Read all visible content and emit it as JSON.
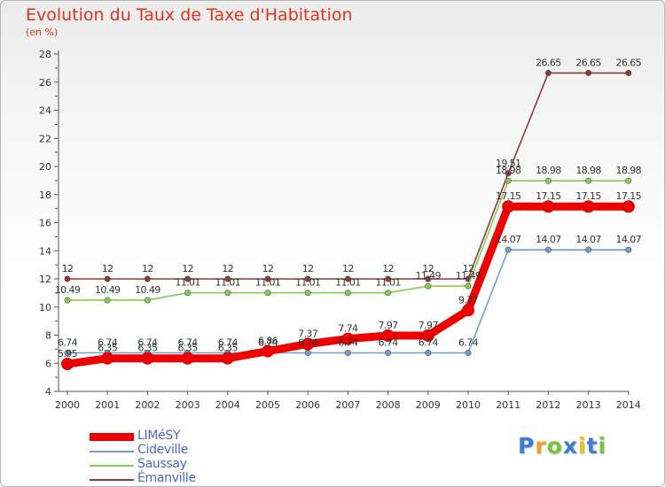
{
  "chart_data": {
    "type": "line",
    "title": "Evolution du Taux de Taxe d'Habitation",
    "unit": "(en %)",
    "x": [
      2000,
      2001,
      2002,
      2003,
      2004,
      2005,
      2006,
      2007,
      2008,
      2009,
      2010,
      2011,
      2012,
      2013,
      2014
    ],
    "ylim": [
      4,
      28
    ],
    "yticks": [
      4,
      6,
      8,
      10,
      12,
      14,
      16,
      18,
      20,
      22,
      24,
      26,
      28
    ],
    "grid": false,
    "legend_position": "bottom-left",
    "series": [
      {
        "name": "LIMéSY",
        "color": "#ee0000",
        "values": [
          5.95,
          6.35,
          6.35,
          6.35,
          6.35,
          6.86,
          7.37,
          7.74,
          7.97,
          7.97,
          9.77,
          17.15,
          17.15,
          17.15,
          17.15
        ],
        "labels": [
          "5.95",
          "6.35",
          "6.35",
          "6.35",
          "6.35",
          "6.86",
          "7.37",
          "7.74",
          "7.97",
          "7.97",
          "9.77",
          "17.15",
          "17.15",
          "17.15",
          "17.15"
        ]
      },
      {
        "name": "Cideville",
        "color": "#6f9fd0",
        "values": [
          6.74,
          6.74,
          6.74,
          6.74,
          6.74,
          6.74,
          6.74,
          6.74,
          6.74,
          6.74,
          6.74,
          14.07,
          14.07,
          14.07,
          14.07
        ],
        "labels": [
          "6.74",
          "6.74",
          "6.74",
          "6.74",
          "6.74",
          "6.74",
          "6.74",
          "6.74",
          "6.74",
          "6.74",
          "6.74",
          "14.07",
          "14.07",
          "14.07",
          "14.07"
        ]
      },
      {
        "name": "Saussay",
        "color": "#88cc55",
        "values": [
          10.49,
          10.49,
          10.49,
          11.01,
          11.01,
          11.01,
          11.01,
          11.01,
          11.01,
          11.49,
          11.49,
          18.98,
          18.98,
          18.98,
          18.98
        ],
        "labels": [
          "10.49",
          "10.49",
          "10.49",
          "11.01",
          "11.01",
          "11.01",
          "11.01",
          "11.01",
          "11.01",
          "11.49",
          "11.49",
          "18.98",
          "18.98",
          "18.98",
          "18.98"
        ]
      },
      {
        "name": "Émanville",
        "color": "#8b3a3a",
        "values": [
          12,
          12,
          12,
          12,
          12,
          12,
          12,
          12,
          12,
          12,
          12,
          19.51,
          26.65,
          26.65,
          26.65
        ],
        "labels": [
          "12",
          "12",
          "12",
          "12",
          "12",
          "12",
          "12",
          "12",
          "12",
          "12",
          "12",
          "19.51",
          "26.65",
          "26.65",
          "26.65"
        ]
      }
    ]
  },
  "logo": {
    "letters": [
      "P",
      "r",
      "o",
      "x",
      "i",
      "t",
      "i"
    ],
    "colors": [
      "#3a7fd5",
      "#f0a020",
      "#7cc242",
      "#3a7fd5",
      "#e8c020",
      "#3a7fd5",
      "#7cc242"
    ]
  }
}
